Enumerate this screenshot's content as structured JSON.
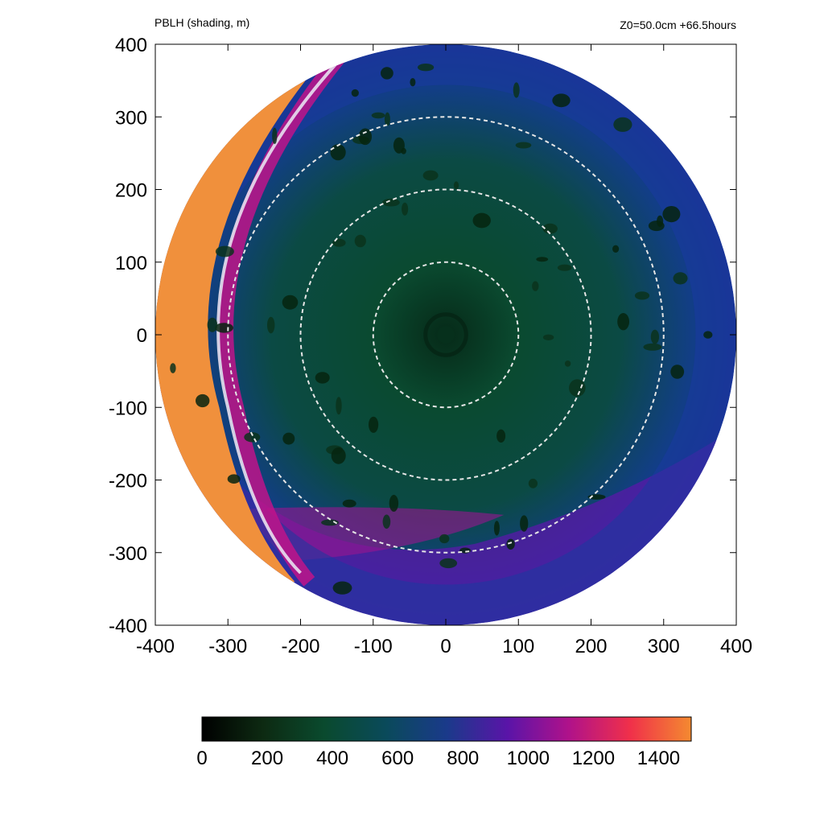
{
  "chart_data": {
    "type": "heatmap",
    "title_left": "PBLH (shading, m)",
    "title_right": "Z0=50.0cm  +66.5hours",
    "xlim": [
      -400,
      400
    ],
    "ylim": [
      -400,
      400
    ],
    "x_ticks": [
      -400,
      -300,
      -200,
      -100,
      0,
      100,
      200,
      300,
      400
    ],
    "y_ticks": [
      400,
      300,
      200,
      100,
      0,
      -100,
      -200,
      -300,
      -400
    ],
    "x_tick_labels": [
      "-400",
      "-300",
      "-200",
      "-100",
      "0",
      "100",
      "200",
      "300",
      "400"
    ],
    "y_tick_labels": [
      "400",
      "300",
      "200",
      "100",
      "0",
      "-100",
      "-200",
      "-300",
      "-400"
    ],
    "domain_radius": 400,
    "dashed_circle_radii": [
      100,
      200,
      300
    ],
    "colorbar": {
      "range": [
        0,
        1500
      ],
      "ticks": [
        0,
        200,
        400,
        600,
        800,
        1000,
        1200,
        1400
      ],
      "tick_labels": [
        "0",
        "200",
        "400",
        "600",
        "800",
        "1000",
        "1200",
        "1400"
      ],
      "colors": [
        "#000000",
        "#0d2a12",
        "#0a4a2e",
        "#0a4a5a",
        "#1a3a8a",
        "#5a14a8",
        "#b0128a",
        "#f0304a",
        "#f48a30"
      ]
    },
    "field_description": {
      "center": [
        0,
        0
      ],
      "eye_value": 400,
      "inner_core_value": 500,
      "outer_value": 800,
      "spiral_band_value": 1000,
      "west_edge_value": 1500
    },
    "grid": false,
    "legend": "colorbar-bottom"
  }
}
